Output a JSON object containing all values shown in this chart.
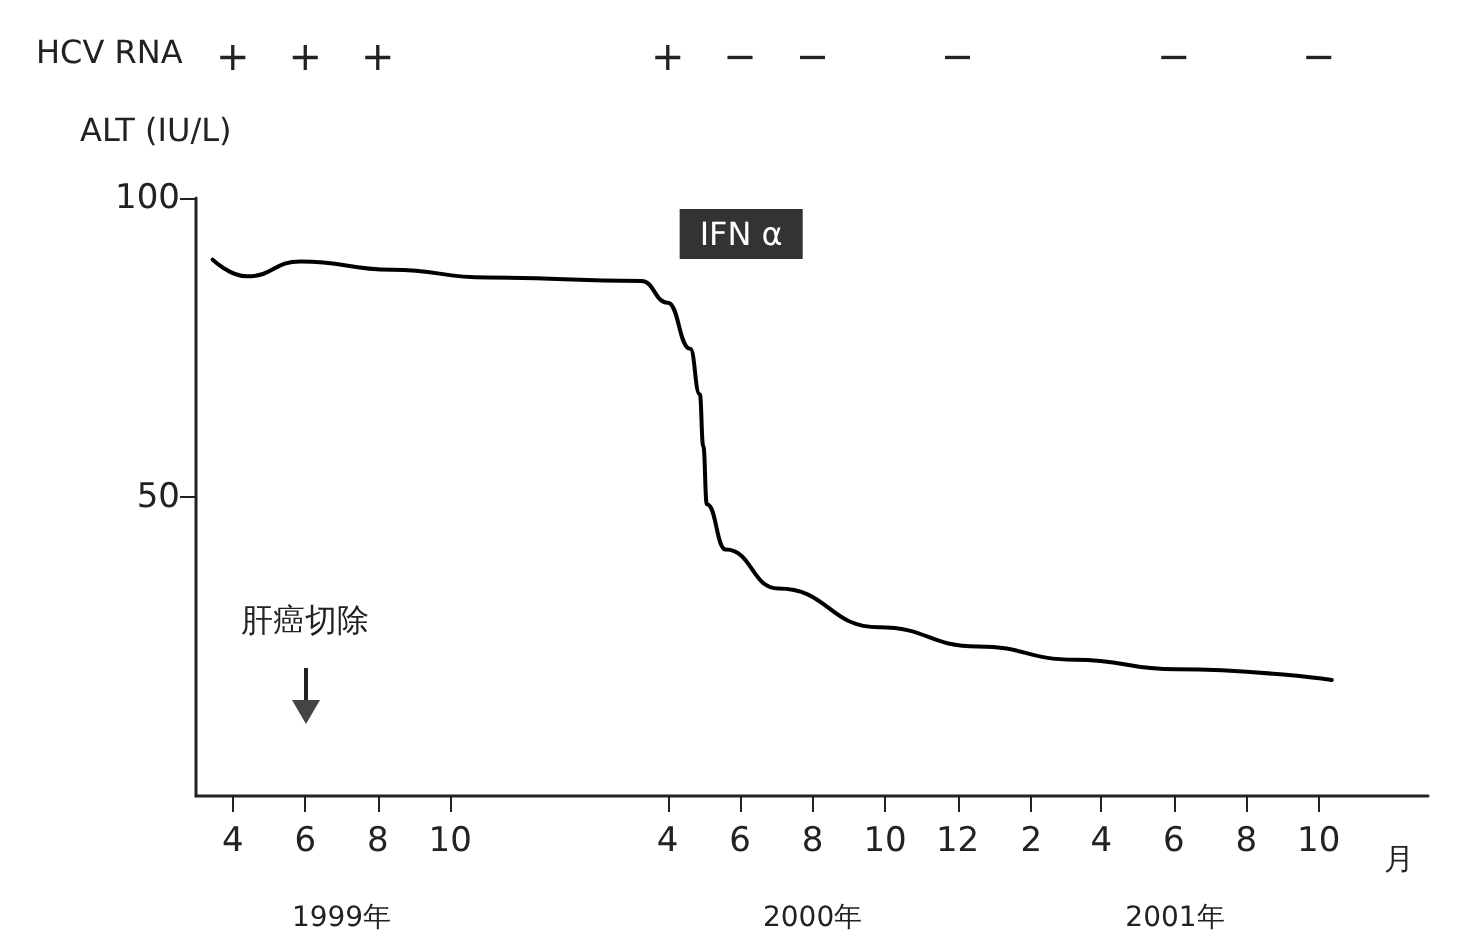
{
  "chart_data": {
    "type": "line",
    "ylabel": "ALT (IU/L)",
    "xlabel": "月",
    "x": [
      "1999-03-15",
      "1999-04-13",
      "1999-05-28",
      "1999-08-13",
      "1999-11-01",
      "2000-03-10",
      "2000-04-01",
      "2000-04-20",
      "2000-04-28",
      "2000-05-01",
      "2000-05-04",
      "2000-05-20",
      "2000-07-03",
      "2000-09-26",
      "2000-12-18",
      "2001-03-10",
      "2001-06-03",
      "2001-10-12"
    ],
    "series": [
      {
        "color": "#000000",
        "values": [
          89.7,
          86.9,
          89.4,
          88,
          86.7,
          86.1,
          82.5,
          74.8,
          67.2,
          58.5,
          48.8,
          41.2,
          34.7,
          28.2,
          25.0,
          22.8,
          21.2,
          19.4
        ]
      }
    ],
    "xlim": [
      "1999-03-01",
      "2002-01-01"
    ],
    "xticks": [
      {
        "value": "1999-04-01",
        "label": "4"
      },
      {
        "value": "1999-06-01",
        "label": "6"
      },
      {
        "value": "1999-08-01",
        "label": "8"
      },
      {
        "value": "1999-10-01",
        "label": "10"
      },
      {
        "value": "2000-04-01",
        "label": "4"
      },
      {
        "value": "2000-06-01",
        "label": "6"
      },
      {
        "value": "2000-08-01",
        "label": "8"
      },
      {
        "value": "2000-10-01",
        "label": "10"
      },
      {
        "value": "2000-12-01",
        "label": "12"
      },
      {
        "value": "2001-02-01",
        "label": "2"
      },
      {
        "value": "2001-04-01",
        "label": "4"
      },
      {
        "value": "2001-06-01",
        "label": "6"
      },
      {
        "value": "2001-08-01",
        "label": "8"
      },
      {
        "value": "2001-10-01",
        "label": "10"
      }
    ],
    "ylim": [
      0,
      100
    ],
    "yticks": [
      50,
      100
    ],
    "grid": false,
    "annotations": [
      "HCV RNA",
      "+",
      "+",
      "+",
      "+",
      "−",
      "−",
      "−",
      "−",
      "−",
      "IFN α",
      "肝癌切除",
      "1999年",
      "2000年",
      "2001年"
    ]
  }
}
